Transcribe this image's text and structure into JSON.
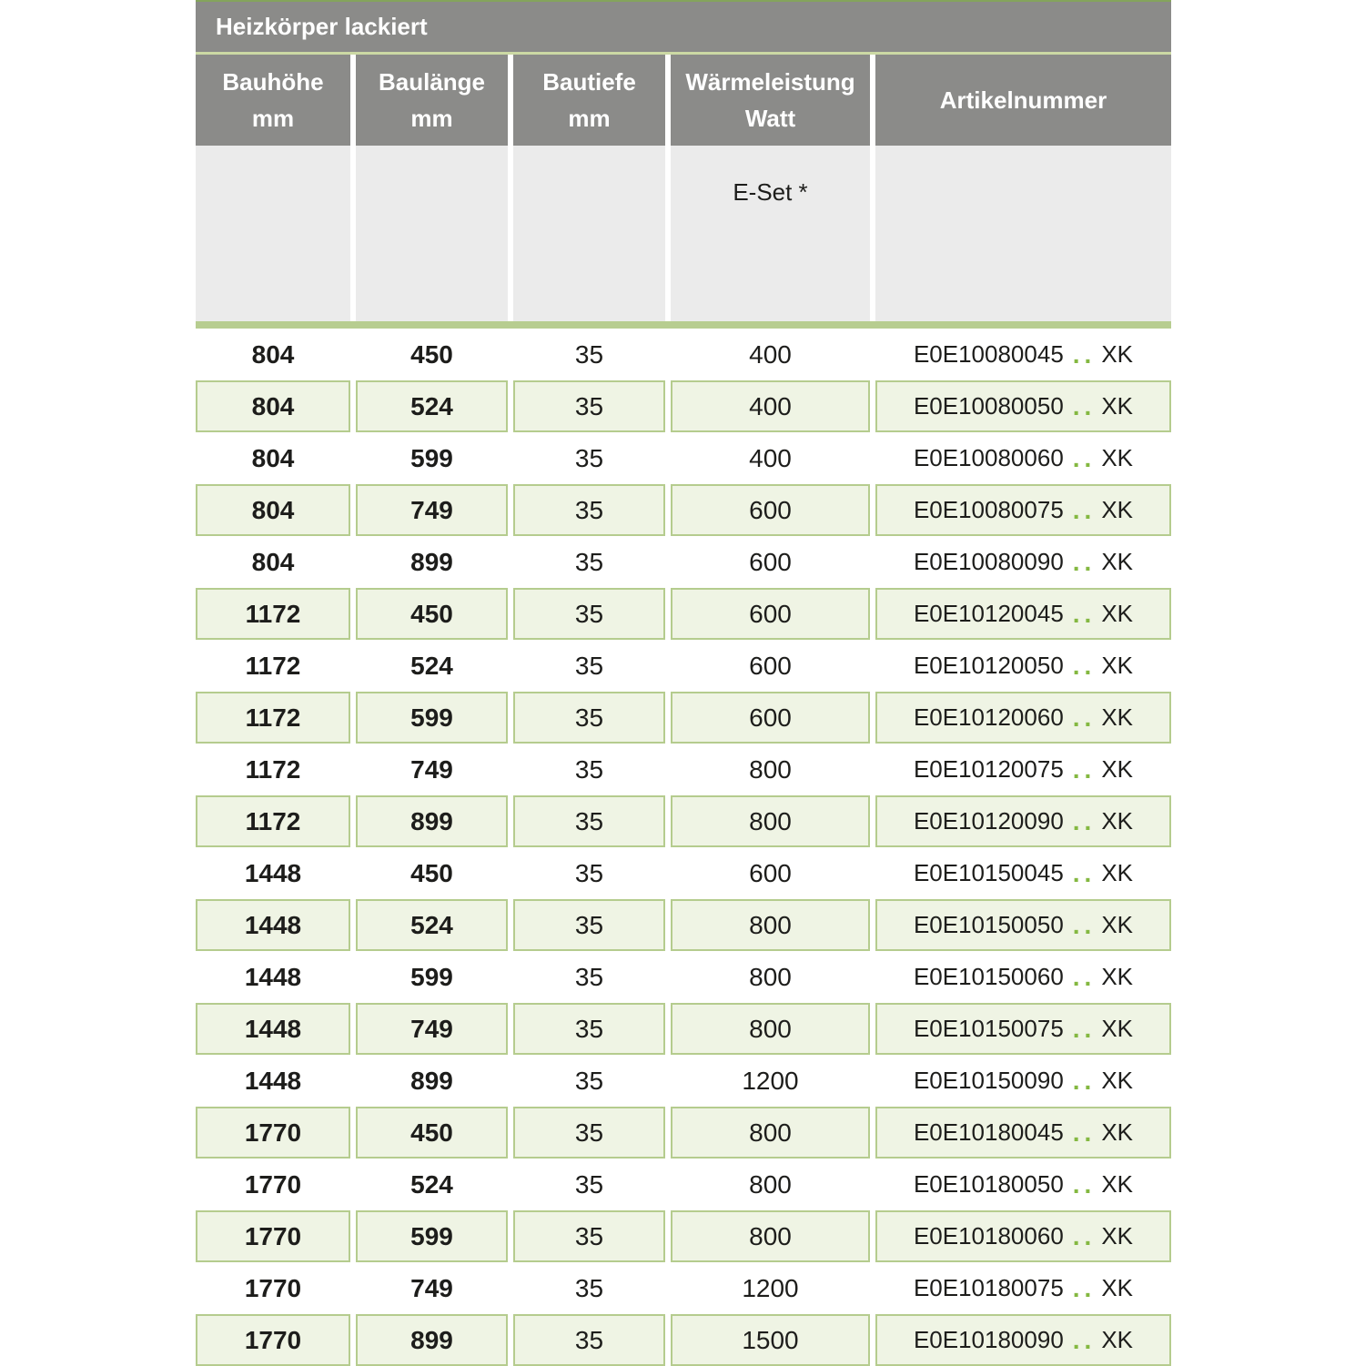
{
  "table": {
    "title": "Heizkörper lackiert",
    "columns": [
      {
        "label": "Bauhöhe",
        "unit": "mm"
      },
      {
        "label": "Baulänge",
        "unit": "mm"
      },
      {
        "label": "Bautiefe",
        "unit": "mm"
      },
      {
        "label": "Wärmeleistung",
        "unit": "Watt"
      },
      {
        "label": "Artikelnummer",
        "unit": ""
      }
    ],
    "eset_label": "E-Set *",
    "colors": {
      "header_gray": "#8b8b89",
      "subheader_gray": "#ebebeb",
      "accent_green": "#84b841",
      "band_green": "#b7cd90",
      "row_green_fill": "#eff4e4",
      "row_green_border": "#b5cc8e"
    },
    "rows": [
      {
        "bauhoehe": "804",
        "baulaenge": "450",
        "bautiefe": "35",
        "watt": "400",
        "artikel_code": "E0E10080045",
        "artikel_dots": "..",
        "artikel_suffix": "XK"
      },
      {
        "bauhoehe": "804",
        "baulaenge": "524",
        "bautiefe": "35",
        "watt": "400",
        "artikel_code": "E0E10080050",
        "artikel_dots": "..",
        "artikel_suffix": "XK"
      },
      {
        "bauhoehe": "804",
        "baulaenge": "599",
        "bautiefe": "35",
        "watt": "400",
        "artikel_code": "E0E10080060",
        "artikel_dots": "..",
        "artikel_suffix": "XK"
      },
      {
        "bauhoehe": "804",
        "baulaenge": "749",
        "bautiefe": "35",
        "watt": "600",
        "artikel_code": "E0E10080075",
        "artikel_dots": "..",
        "artikel_suffix": "XK"
      },
      {
        "bauhoehe": "804",
        "baulaenge": "899",
        "bautiefe": "35",
        "watt": "600",
        "artikel_code": "E0E10080090",
        "artikel_dots": "..",
        "artikel_suffix": "XK"
      },
      {
        "bauhoehe": "1172",
        "baulaenge": "450",
        "bautiefe": "35",
        "watt": "600",
        "artikel_code": "E0E10120045",
        "artikel_dots": "..",
        "artikel_suffix": "XK"
      },
      {
        "bauhoehe": "1172",
        "baulaenge": "524",
        "bautiefe": "35",
        "watt": "600",
        "artikel_code": "E0E10120050",
        "artikel_dots": "..",
        "artikel_suffix": "XK"
      },
      {
        "bauhoehe": "1172",
        "baulaenge": "599",
        "bautiefe": "35",
        "watt": "600",
        "artikel_code": "E0E10120060",
        "artikel_dots": "..",
        "artikel_suffix": "XK"
      },
      {
        "bauhoehe": "1172",
        "baulaenge": "749",
        "bautiefe": "35",
        "watt": "800",
        "artikel_code": "E0E10120075",
        "artikel_dots": "..",
        "artikel_suffix": "XK"
      },
      {
        "bauhoehe": "1172",
        "baulaenge": "899",
        "bautiefe": "35",
        "watt": "800",
        "artikel_code": "E0E10120090",
        "artikel_dots": "..",
        "artikel_suffix": "XK"
      },
      {
        "bauhoehe": "1448",
        "baulaenge": "450",
        "bautiefe": "35",
        "watt": "600",
        "artikel_code": "E0E10150045",
        "artikel_dots": "..",
        "artikel_suffix": "XK"
      },
      {
        "bauhoehe": "1448",
        "baulaenge": "524",
        "bautiefe": "35",
        "watt": "800",
        "artikel_code": "E0E10150050",
        "artikel_dots": "..",
        "artikel_suffix": "XK"
      },
      {
        "bauhoehe": "1448",
        "baulaenge": "599",
        "bautiefe": "35",
        "watt": "800",
        "artikel_code": "E0E10150060",
        "artikel_dots": "..",
        "artikel_suffix": "XK"
      },
      {
        "bauhoehe": "1448",
        "baulaenge": "749",
        "bautiefe": "35",
        "watt": "800",
        "artikel_code": "E0E10150075",
        "artikel_dots": "..",
        "artikel_suffix": "XK"
      },
      {
        "bauhoehe": "1448",
        "baulaenge": "899",
        "bautiefe": "35",
        "watt": "1200",
        "artikel_code": "E0E10150090",
        "artikel_dots": "..",
        "artikel_suffix": "XK"
      },
      {
        "bauhoehe": "1770",
        "baulaenge": "450",
        "bautiefe": "35",
        "watt": "800",
        "artikel_code": "E0E10180045",
        "artikel_dots": "..",
        "artikel_suffix": "XK"
      },
      {
        "bauhoehe": "1770",
        "baulaenge": "524",
        "bautiefe": "35",
        "watt": "800",
        "artikel_code": "E0E10180050",
        "artikel_dots": "..",
        "artikel_suffix": "XK"
      },
      {
        "bauhoehe": "1770",
        "baulaenge": "599",
        "bautiefe": "35",
        "watt": "800",
        "artikel_code": "E0E10180060",
        "artikel_dots": "..",
        "artikel_suffix": "XK"
      },
      {
        "bauhoehe": "1770",
        "baulaenge": "749",
        "bautiefe": "35",
        "watt": "1200",
        "artikel_code": "E0E10180075",
        "artikel_dots": "..",
        "artikel_suffix": "XK"
      },
      {
        "bauhoehe": "1770",
        "baulaenge": "899",
        "bautiefe": "35",
        "watt": "1500",
        "artikel_code": "E0E10180090",
        "artikel_dots": "..",
        "artikel_suffix": "XK"
      }
    ]
  }
}
